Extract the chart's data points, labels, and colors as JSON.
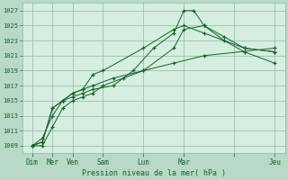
{
  "background_color": "#b8d8c8",
  "plot_bg_color": "#d4eee0",
  "grid_color": "#90b8a0",
  "line_color": "#1a5e28",
  "xlabel": "Pression niveau de la mer( hPa )",
  "ylim": [
    1008,
    1028
  ],
  "yticks": [
    1009,
    1011,
    1013,
    1015,
    1017,
    1019,
    1021,
    1023,
    1025,
    1027
  ],
  "xlim": [
    0,
    13
  ],
  "xtick_positions": [
    0.5,
    1.5,
    2.5,
    4.0,
    6.0,
    8.0,
    10.5,
    12.5
  ],
  "xtick_labels": [
    "Dim",
    "Mer",
    "Ven",
    "Sam",
    "Lun",
    "Mar",
    "",
    "Jeu"
  ],
  "series": [
    [
      1009,
      1009,
      1011.5,
      1014,
      1015,
      1015.5,
      1016,
      1017,
      1018,
      1019,
      1020,
      1021,
      1022
    ],
    [
      1009,
      1009.5,
      1014,
      1015,
      1016,
      1016.5,
      1018.5,
      1019,
      1022,
      1024.5,
      1025,
      1024,
      1022,
      1021.5
    ],
    [
      1009,
      1010,
      1013,
      1015,
      1015.5,
      1016,
      1016.5,
      1017,
      1019,
      1022,
      1024,
      1027,
      1027,
      1025,
      1023,
      1021.5,
      1020
    ],
    [
      1009,
      1009.5,
      1014,
      1015,
      1016,
      1016.5,
      1017,
      1018,
      1019,
      1022,
      1024.5,
      1025,
      1023.5,
      1022,
      1021.5
    ]
  ],
  "series_x": [
    [
      0.5,
      1.0,
      1.5,
      2.0,
      2.5,
      3.0,
      3.5,
      4.0,
      5.0,
      6.0,
      7.5,
      9.0,
      12.5
    ],
    [
      0.5,
      1.0,
      1.5,
      2.0,
      2.5,
      3.0,
      3.5,
      4.0,
      6.0,
      7.5,
      8.0,
      9.0,
      11.0,
      12.5
    ],
    [
      0.5,
      1.0,
      1.5,
      2.0,
      2.5,
      3.0,
      3.5,
      4.5,
      5.5,
      6.5,
      7.5,
      8.0,
      8.5,
      9.0,
      10.0,
      11.0,
      12.5
    ],
    [
      0.5,
      1.0,
      1.5,
      2.0,
      2.5,
      3.0,
      3.5,
      4.5,
      6.0,
      7.5,
      8.0,
      9.0,
      10.0,
      11.0,
      12.5
    ]
  ]
}
